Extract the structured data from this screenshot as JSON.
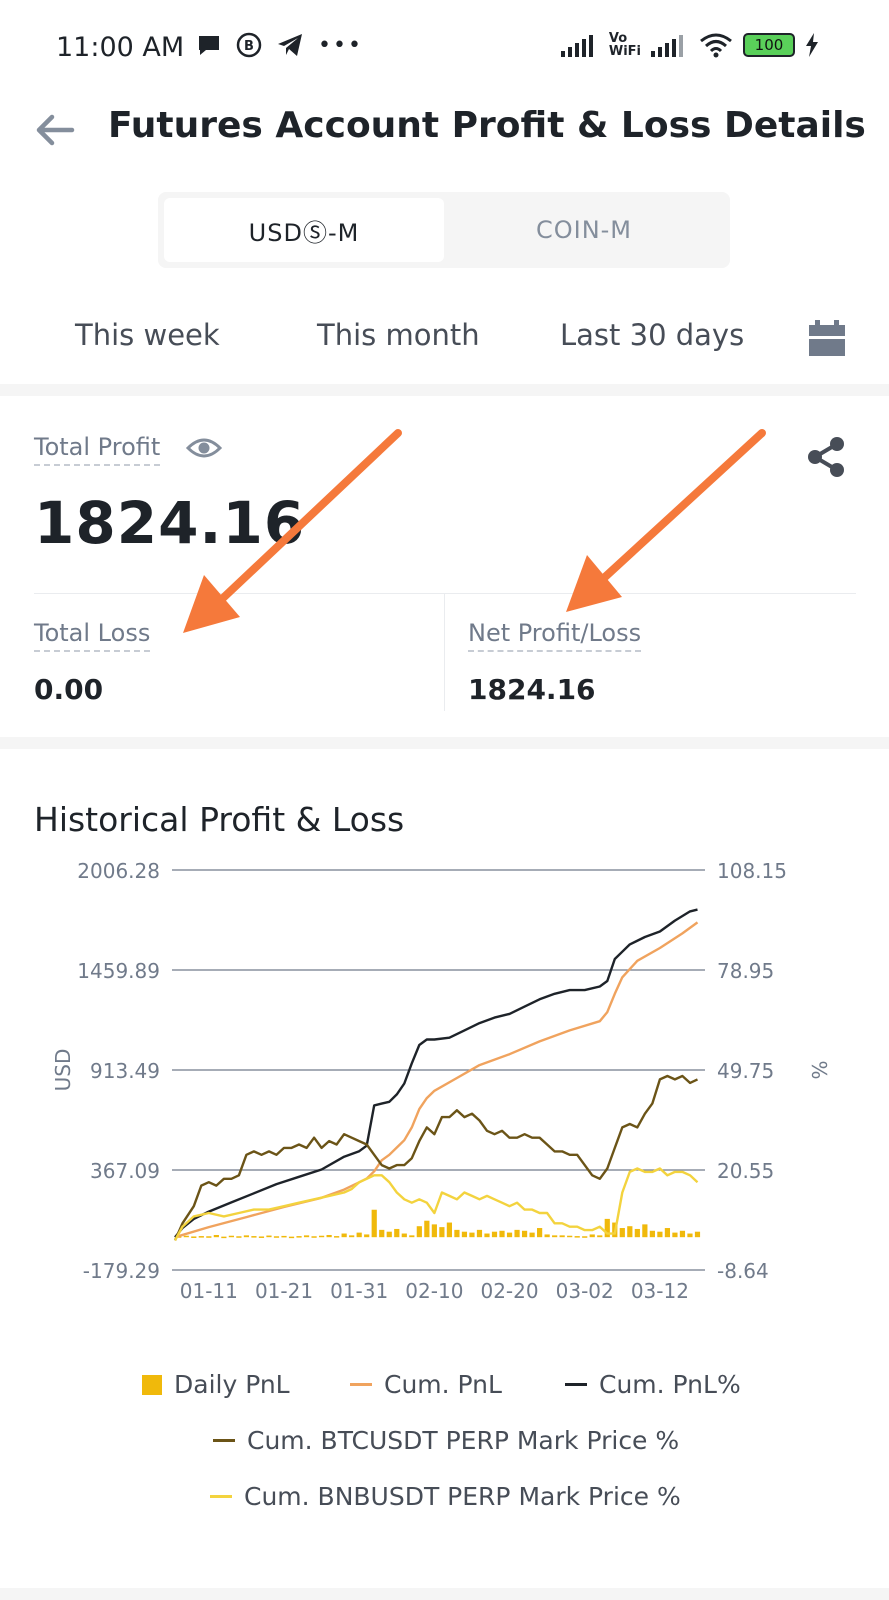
{
  "status_bar": {
    "time": "11:00 AM",
    "wifi_label_top": "Vo",
    "wifi_label_bottom": "WiFi",
    "battery": "100"
  },
  "header": {
    "title": "Futures Account Profit & Loss Details"
  },
  "tabs": [
    {
      "label": "USDⓈ-M",
      "active": true
    },
    {
      "label": "COIN-M",
      "active": false
    }
  ],
  "ranges": [
    "This week",
    "This month",
    "Last 30 days"
  ],
  "summary": {
    "total_profit_label": "Total Profit",
    "total_profit_value": "1824.16",
    "total_loss_label": "Total Loss",
    "total_loss_value": "0.00",
    "net_label": "Net Profit/Loss",
    "net_value": "1824.16"
  },
  "chart_section": {
    "title": "Historical Profit & Loss"
  },
  "colors": {
    "daily_pnl": "#f0b90b",
    "cum_pnl": "#f0a35e",
    "cum_pnl_pct": "#1e2329",
    "btc": "#6b5417",
    "bnb": "#f3d33e",
    "arrow": "#f5793b"
  },
  "chart_data": {
    "type": "line",
    "ylabel": "USD",
    "y2label": "%",
    "ylim": [
      -179.29,
      2006.28
    ],
    "y2lim": [
      -8.64,
      108.15
    ],
    "y_ticks": [
      "2006.28",
      "1459.89",
      "913.49",
      "367.09",
      "-179.29"
    ],
    "y2_ticks": [
      "108.15",
      "78.95",
      "49.75",
      "20.55",
      "-8.64"
    ],
    "x_ticks": [
      "01-11",
      "01-21",
      "01-31",
      "02-10",
      "02-20",
      "03-02",
      "03-12"
    ],
    "x_tick_days": [
      10,
      20,
      30,
      40,
      50,
      60,
      70
    ],
    "x_range_days": [
      5.5,
      76
    ],
    "grid": true,
    "legend_position": "bottom",
    "series": [
      {
        "name": "Daily PnL",
        "kind": "bar",
        "axis": "left",
        "points": [
          [
            6,
            5
          ],
          [
            7,
            8
          ],
          [
            8,
            4
          ],
          [
            9,
            6
          ],
          [
            10,
            5
          ],
          [
            11,
            12
          ],
          [
            12,
            3
          ],
          [
            13,
            8
          ],
          [
            14,
            5
          ],
          [
            15,
            10
          ],
          [
            16,
            6
          ],
          [
            17,
            4
          ],
          [
            18,
            9
          ],
          [
            19,
            5
          ],
          [
            20,
            7
          ],
          [
            21,
            3
          ],
          [
            22,
            6
          ],
          [
            23,
            10
          ],
          [
            24,
            5
          ],
          [
            25,
            8
          ],
          [
            26,
            12
          ],
          [
            27,
            6
          ],
          [
            28,
            20
          ],
          [
            29,
            10
          ],
          [
            30,
            25
          ],
          [
            31,
            15
          ],
          [
            32,
            150
          ],
          [
            33,
            40
          ],
          [
            34,
            30
          ],
          [
            35,
            45
          ],
          [
            36,
            20
          ],
          [
            37,
            10
          ],
          [
            38,
            60
          ],
          [
            39,
            90
          ],
          [
            40,
            70
          ],
          [
            41,
            55
          ],
          [
            42,
            80
          ],
          [
            43,
            40
          ],
          [
            44,
            30
          ],
          [
            45,
            25
          ],
          [
            46,
            40
          ],
          [
            47,
            20
          ],
          [
            48,
            30
          ],
          [
            49,
            35
          ],
          [
            50,
            25
          ],
          [
            51,
            40
          ],
          [
            52,
            35
          ],
          [
            53,
            25
          ],
          [
            54,
            50
          ],
          [
            55,
            15
          ],
          [
            56,
            10
          ],
          [
            57,
            10
          ],
          [
            58,
            8
          ],
          [
            59,
            6
          ],
          [
            60,
            5
          ],
          [
            61,
            15
          ],
          [
            62,
            10
          ],
          [
            63,
            100
          ],
          [
            64,
            80
          ],
          [
            65,
            50
          ],
          [
            66,
            60
          ],
          [
            67,
            45
          ],
          [
            68,
            70
          ],
          [
            69,
            35
          ],
          [
            70,
            30
          ],
          [
            71,
            50
          ],
          [
            72,
            25
          ],
          [
            73,
            35
          ],
          [
            74,
            20
          ],
          [
            75,
            30
          ]
        ]
      },
      {
        "name": "Cum. PnL",
        "kind": "line",
        "axis": "left",
        "points": [
          [
            5.5,
            0
          ],
          [
            10,
            55
          ],
          [
            15,
            110
          ],
          [
            20,
            165
          ],
          [
            25,
            215
          ],
          [
            28,
            260
          ],
          [
            30,
            300
          ],
          [
            31,
            320
          ],
          [
            32,
            360
          ],
          [
            33,
            420
          ],
          [
            34,
            450
          ],
          [
            35,
            490
          ],
          [
            36,
            530
          ],
          [
            37,
            600
          ],
          [
            38,
            700
          ],
          [
            39,
            760
          ],
          [
            40,
            800
          ],
          [
            43,
            870
          ],
          [
            46,
            940
          ],
          [
            50,
            1000
          ],
          [
            54,
            1070
          ],
          [
            58,
            1130
          ],
          [
            62,
            1180
          ],
          [
            63,
            1230
          ],
          [
            64,
            1330
          ],
          [
            65,
            1420
          ],
          [
            67,
            1510
          ],
          [
            70,
            1580
          ],
          [
            73,
            1660
          ],
          [
            75,
            1720
          ]
        ]
      },
      {
        "name": "Cum. PnL%",
        "kind": "line",
        "axis": "left",
        "points": [
          [
            5.5,
            0
          ],
          [
            6.5,
            50
          ],
          [
            8,
            100
          ],
          [
            10,
            140
          ],
          [
            13,
            190
          ],
          [
            16,
            240
          ],
          [
            19,
            290
          ],
          [
            22,
            330
          ],
          [
            25,
            370
          ],
          [
            28,
            440
          ],
          [
            30,
            470
          ],
          [
            31,
            500
          ],
          [
            32,
            720
          ],
          [
            33,
            730
          ],
          [
            34,
            740
          ],
          [
            35,
            780
          ],
          [
            36,
            840
          ],
          [
            37,
            950
          ],
          [
            38,
            1050
          ],
          [
            39,
            1080
          ],
          [
            40,
            1080
          ],
          [
            42,
            1090
          ],
          [
            44,
            1130
          ],
          [
            46,
            1170
          ],
          [
            48,
            1200
          ],
          [
            50,
            1220
          ],
          [
            52,
            1260
          ],
          [
            54,
            1300
          ],
          [
            56,
            1330
          ],
          [
            58,
            1350
          ],
          [
            60,
            1350
          ],
          [
            62,
            1370
          ],
          [
            63,
            1400
          ],
          [
            64,
            1520
          ],
          [
            65,
            1560
          ],
          [
            66,
            1600
          ],
          [
            68,
            1640
          ],
          [
            70,
            1670
          ],
          [
            72,
            1730
          ],
          [
            74,
            1780
          ],
          [
            75,
            1790
          ]
        ]
      },
      {
        "name": "Cum. BTCUSDT PERP Mark Price %",
        "kind": "line",
        "axis": "right",
        "points": [
          [
            5.5,
            0
          ],
          [
            6.5,
            5
          ],
          [
            8,
            10
          ],
          [
            9,
            16
          ],
          [
            10,
            17
          ],
          [
            11,
            16
          ],
          [
            12,
            18
          ],
          [
            13,
            18
          ],
          [
            14,
            19
          ],
          [
            15,
            25
          ],
          [
            16,
            26
          ],
          [
            17,
            25
          ],
          [
            18,
            26
          ],
          [
            19,
            25
          ],
          [
            20,
            27
          ],
          [
            21,
            27
          ],
          [
            22,
            28
          ],
          [
            23,
            27
          ],
          [
            24,
            30
          ],
          [
            25,
            27
          ],
          [
            26,
            29
          ],
          [
            27,
            28
          ],
          [
            28,
            31
          ],
          [
            29,
            30
          ],
          [
            30,
            29
          ],
          [
            31,
            28
          ],
          [
            32,
            25
          ],
          [
            33,
            22
          ],
          [
            34,
            21
          ],
          [
            35,
            22
          ],
          [
            36,
            22
          ],
          [
            37,
            24
          ],
          [
            38,
            29
          ],
          [
            39,
            33
          ],
          [
            40,
            31
          ],
          [
            41,
            36
          ],
          [
            42,
            36
          ],
          [
            43,
            38
          ],
          [
            44,
            36
          ],
          [
            45,
            37
          ],
          [
            46,
            35
          ],
          [
            47,
            32
          ],
          [
            48,
            31
          ],
          [
            49,
            32
          ],
          [
            50,
            30
          ],
          [
            51,
            30
          ],
          [
            52,
            31
          ],
          [
            53,
            30
          ],
          [
            54,
            30
          ],
          [
            55,
            28
          ],
          [
            56,
            26
          ],
          [
            57,
            26
          ],
          [
            58,
            25
          ],
          [
            59,
            25
          ],
          [
            60,
            22
          ],
          [
            61,
            19
          ],
          [
            62,
            18
          ],
          [
            63,
            21
          ],
          [
            64,
            27
          ],
          [
            65,
            33
          ],
          [
            66,
            34
          ],
          [
            67,
            33
          ],
          [
            68,
            37
          ],
          [
            69,
            40
          ],
          [
            70,
            47
          ],
          [
            71,
            48
          ],
          [
            72,
            47
          ],
          [
            73,
            48
          ],
          [
            74,
            46
          ],
          [
            75,
            47
          ]
        ]
      },
      {
        "name": "Cum. BNBUSDT PERP Mark Price %",
        "kind": "line",
        "axis": "right",
        "points": [
          [
            5.5,
            0
          ],
          [
            6.5,
            4
          ],
          [
            8,
            7
          ],
          [
            10,
            8
          ],
          [
            12,
            7
          ],
          [
            14,
            8
          ],
          [
            16,
            9
          ],
          [
            18,
            9
          ],
          [
            20,
            10
          ],
          [
            22,
            11
          ],
          [
            24,
            12
          ],
          [
            26,
            13
          ],
          [
            28,
            14
          ],
          [
            29,
            15
          ],
          [
            30,
            17
          ],
          [
            31,
            18
          ],
          [
            32,
            19
          ],
          [
            33,
            19
          ],
          [
            34,
            17
          ],
          [
            35,
            14
          ],
          [
            36,
            12
          ],
          [
            37,
            11
          ],
          [
            38,
            12
          ],
          [
            39,
            11
          ],
          [
            40,
            8
          ],
          [
            41,
            14
          ],
          [
            42,
            13
          ],
          [
            43,
            12
          ],
          [
            44,
            14
          ],
          [
            45,
            13
          ],
          [
            46,
            12
          ],
          [
            47,
            13
          ],
          [
            48,
            12
          ],
          [
            49,
            11
          ],
          [
            50,
            10
          ],
          [
            51,
            11
          ],
          [
            52,
            9
          ],
          [
            53,
            9
          ],
          [
            54,
            8
          ],
          [
            55,
            8
          ],
          [
            56,
            5
          ],
          [
            57,
            5
          ],
          [
            58,
            4
          ],
          [
            59,
            4
          ],
          [
            60,
            3
          ],
          [
            61,
            3
          ],
          [
            62,
            4
          ],
          [
            63,
            2
          ],
          [
            64,
            2
          ],
          [
            65,
            14
          ],
          [
            66,
            20
          ],
          [
            67,
            21
          ],
          [
            68,
            20
          ],
          [
            69,
            20
          ],
          [
            70,
            21
          ],
          [
            71,
            19
          ],
          [
            72,
            20
          ],
          [
            73,
            20
          ],
          [
            74,
            19
          ],
          [
            75,
            17
          ]
        ]
      }
    ]
  }
}
